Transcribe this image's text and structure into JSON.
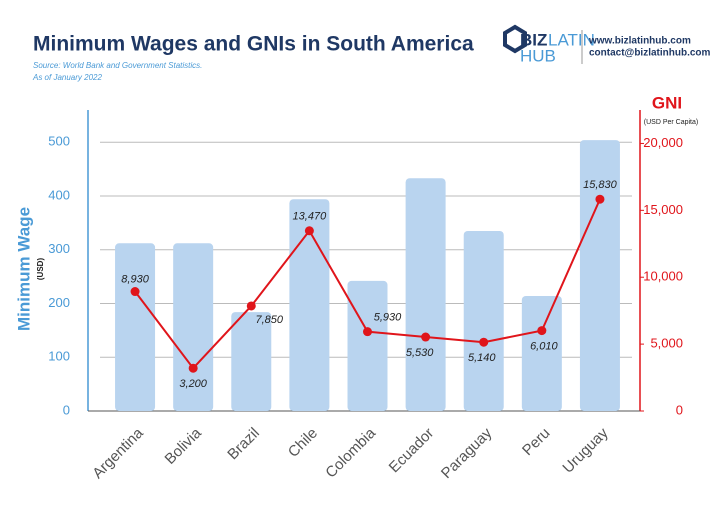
{
  "chart_data": {
    "type": "bar_line",
    "title": "Minimum Wages and GNIs in South America",
    "source": "Source: World Bank and Government Statistics.",
    "note": "As of January 2022",
    "ylabel": "Minimum Wage",
    "ylabel_unit": "(USD)",
    "y2label": "GNI",
    "y2label_unit": "(USD Per Capita)",
    "categories": [
      "Argentina",
      "Bolivia",
      "Brazil",
      "Chile",
      "Colombia",
      "Ecuador",
      "Paraguay",
      "Peru",
      "Uruguay"
    ],
    "series": [
      {
        "name": "Minimum Wage",
        "type": "bar",
        "color": "#b9d4ef",
        "values": [
          312,
          312,
          184,
          394,
          242,
          433,
          335,
          214,
          504
        ]
      },
      {
        "name": "GNI",
        "type": "line",
        "axis": "y2",
        "color": "#e0151b",
        "values": [
          8930,
          3200,
          7850,
          13470,
          5930,
          5530,
          5140,
          6010,
          15830
        ],
        "value_labels": [
          "8,930",
          "3,200",
          "7,850",
          "13,470",
          "5,930",
          "5,530",
          "5,140",
          "6,010",
          "15,830"
        ]
      }
    ],
    "ylim": [
      0,
      560
    ],
    "yticks": [
      0,
      100,
      200,
      300,
      400,
      500
    ],
    "y2lim": [
      0,
      22500
    ],
    "y2ticks": [
      0,
      {
        "value": 5000,
        "label": "5,000"
      },
      {
        "value": 10000,
        "label": "10,000"
      },
      {
        "value": 15000,
        "label": "15,000"
      },
      {
        "value": 20000,
        "label": "20,000"
      }
    ],
    "grid": true,
    "y_color": "#4a9ad6",
    "y2_color": "#e0151b"
  },
  "logo": {
    "part1": "BIZ",
    "part2": "LATIN",
    "part3": "HUB"
  },
  "contact": {
    "website": "www.bizlatinhub.com",
    "email": "contact@bizlatinhub.com"
  }
}
